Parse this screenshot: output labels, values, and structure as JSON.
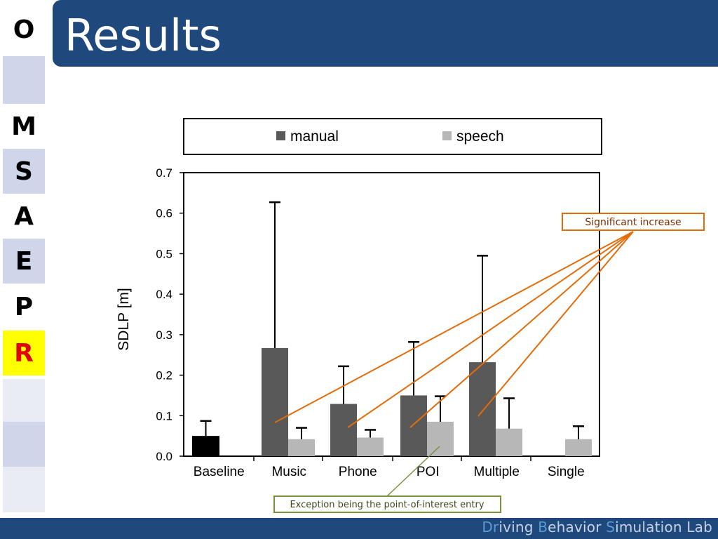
{
  "slide": {
    "title": "Results",
    "footer": {
      "p1": "Dr",
      "p2": "i",
      "p3": "ving ",
      "p4": "B",
      "p5": "ehavior ",
      "p6": "S",
      "p7": "imulation Lab"
    }
  },
  "sidebar": {
    "items": [
      {
        "letter": "O",
        "bg": "#ffffff",
        "color": "#000000"
      },
      {
        "letter": "",
        "bg": "#d0d6ea",
        "color": "#000000"
      },
      {
        "letter": "M",
        "bg": "#ffffff",
        "color": "#000000"
      },
      {
        "letter": "S",
        "bg": "#d0d6ea",
        "color": "#000000"
      },
      {
        "letter": "A",
        "bg": "#ffffff",
        "color": "#000000"
      },
      {
        "letter": "E",
        "bg": "#d0d6ea",
        "color": "#000000"
      },
      {
        "letter": "P",
        "bg": "#ffffff",
        "color": "#000000"
      },
      {
        "letter": "R",
        "bg": "#ffff00",
        "color": "#e00000"
      },
      {
        "letter": "",
        "bg": "#e9ecf5",
        "color": "#000000"
      },
      {
        "letter": "",
        "bg": "#d0d6ea",
        "color": "#000000"
      },
      {
        "letter": "",
        "bg": "#e9ecf5",
        "color": "#000000"
      }
    ]
  },
  "chart_data": {
    "type": "bar",
    "ylabel": "SDLP [m]",
    "ylim": [
      0,
      0.7
    ],
    "yticks": [
      "0.0",
      "0.1",
      "0.2",
      "0.3",
      "0.4",
      "0.5",
      "0.6",
      "0.7"
    ],
    "categories": [
      "Baseline",
      "Music",
      "Phone",
      "POI",
      "Multiple",
      "Single"
    ],
    "baseline": {
      "value": 0.05,
      "error": 0.087,
      "color": "#000000"
    },
    "series": [
      {
        "name": "manual",
        "color": "#595959",
        "values": [
          null,
          0.267,
          0.129,
          0.15,
          0.232,
          null
        ],
        "errors": [
          null,
          0.627,
          0.222,
          0.282,
          0.495,
          null
        ]
      },
      {
        "name": "speech",
        "color": "#b7b7b7",
        "values": [
          null,
          0.042,
          0.046,
          0.085,
          0.068,
          0.042
        ],
        "errors": [
          null,
          0.07,
          0.065,
          0.148,
          0.143,
          0.074
        ]
      }
    ],
    "legend": "top",
    "annotations": {
      "increase": "Significant increase",
      "exception": "Exception being the point-of-interest entry"
    }
  }
}
